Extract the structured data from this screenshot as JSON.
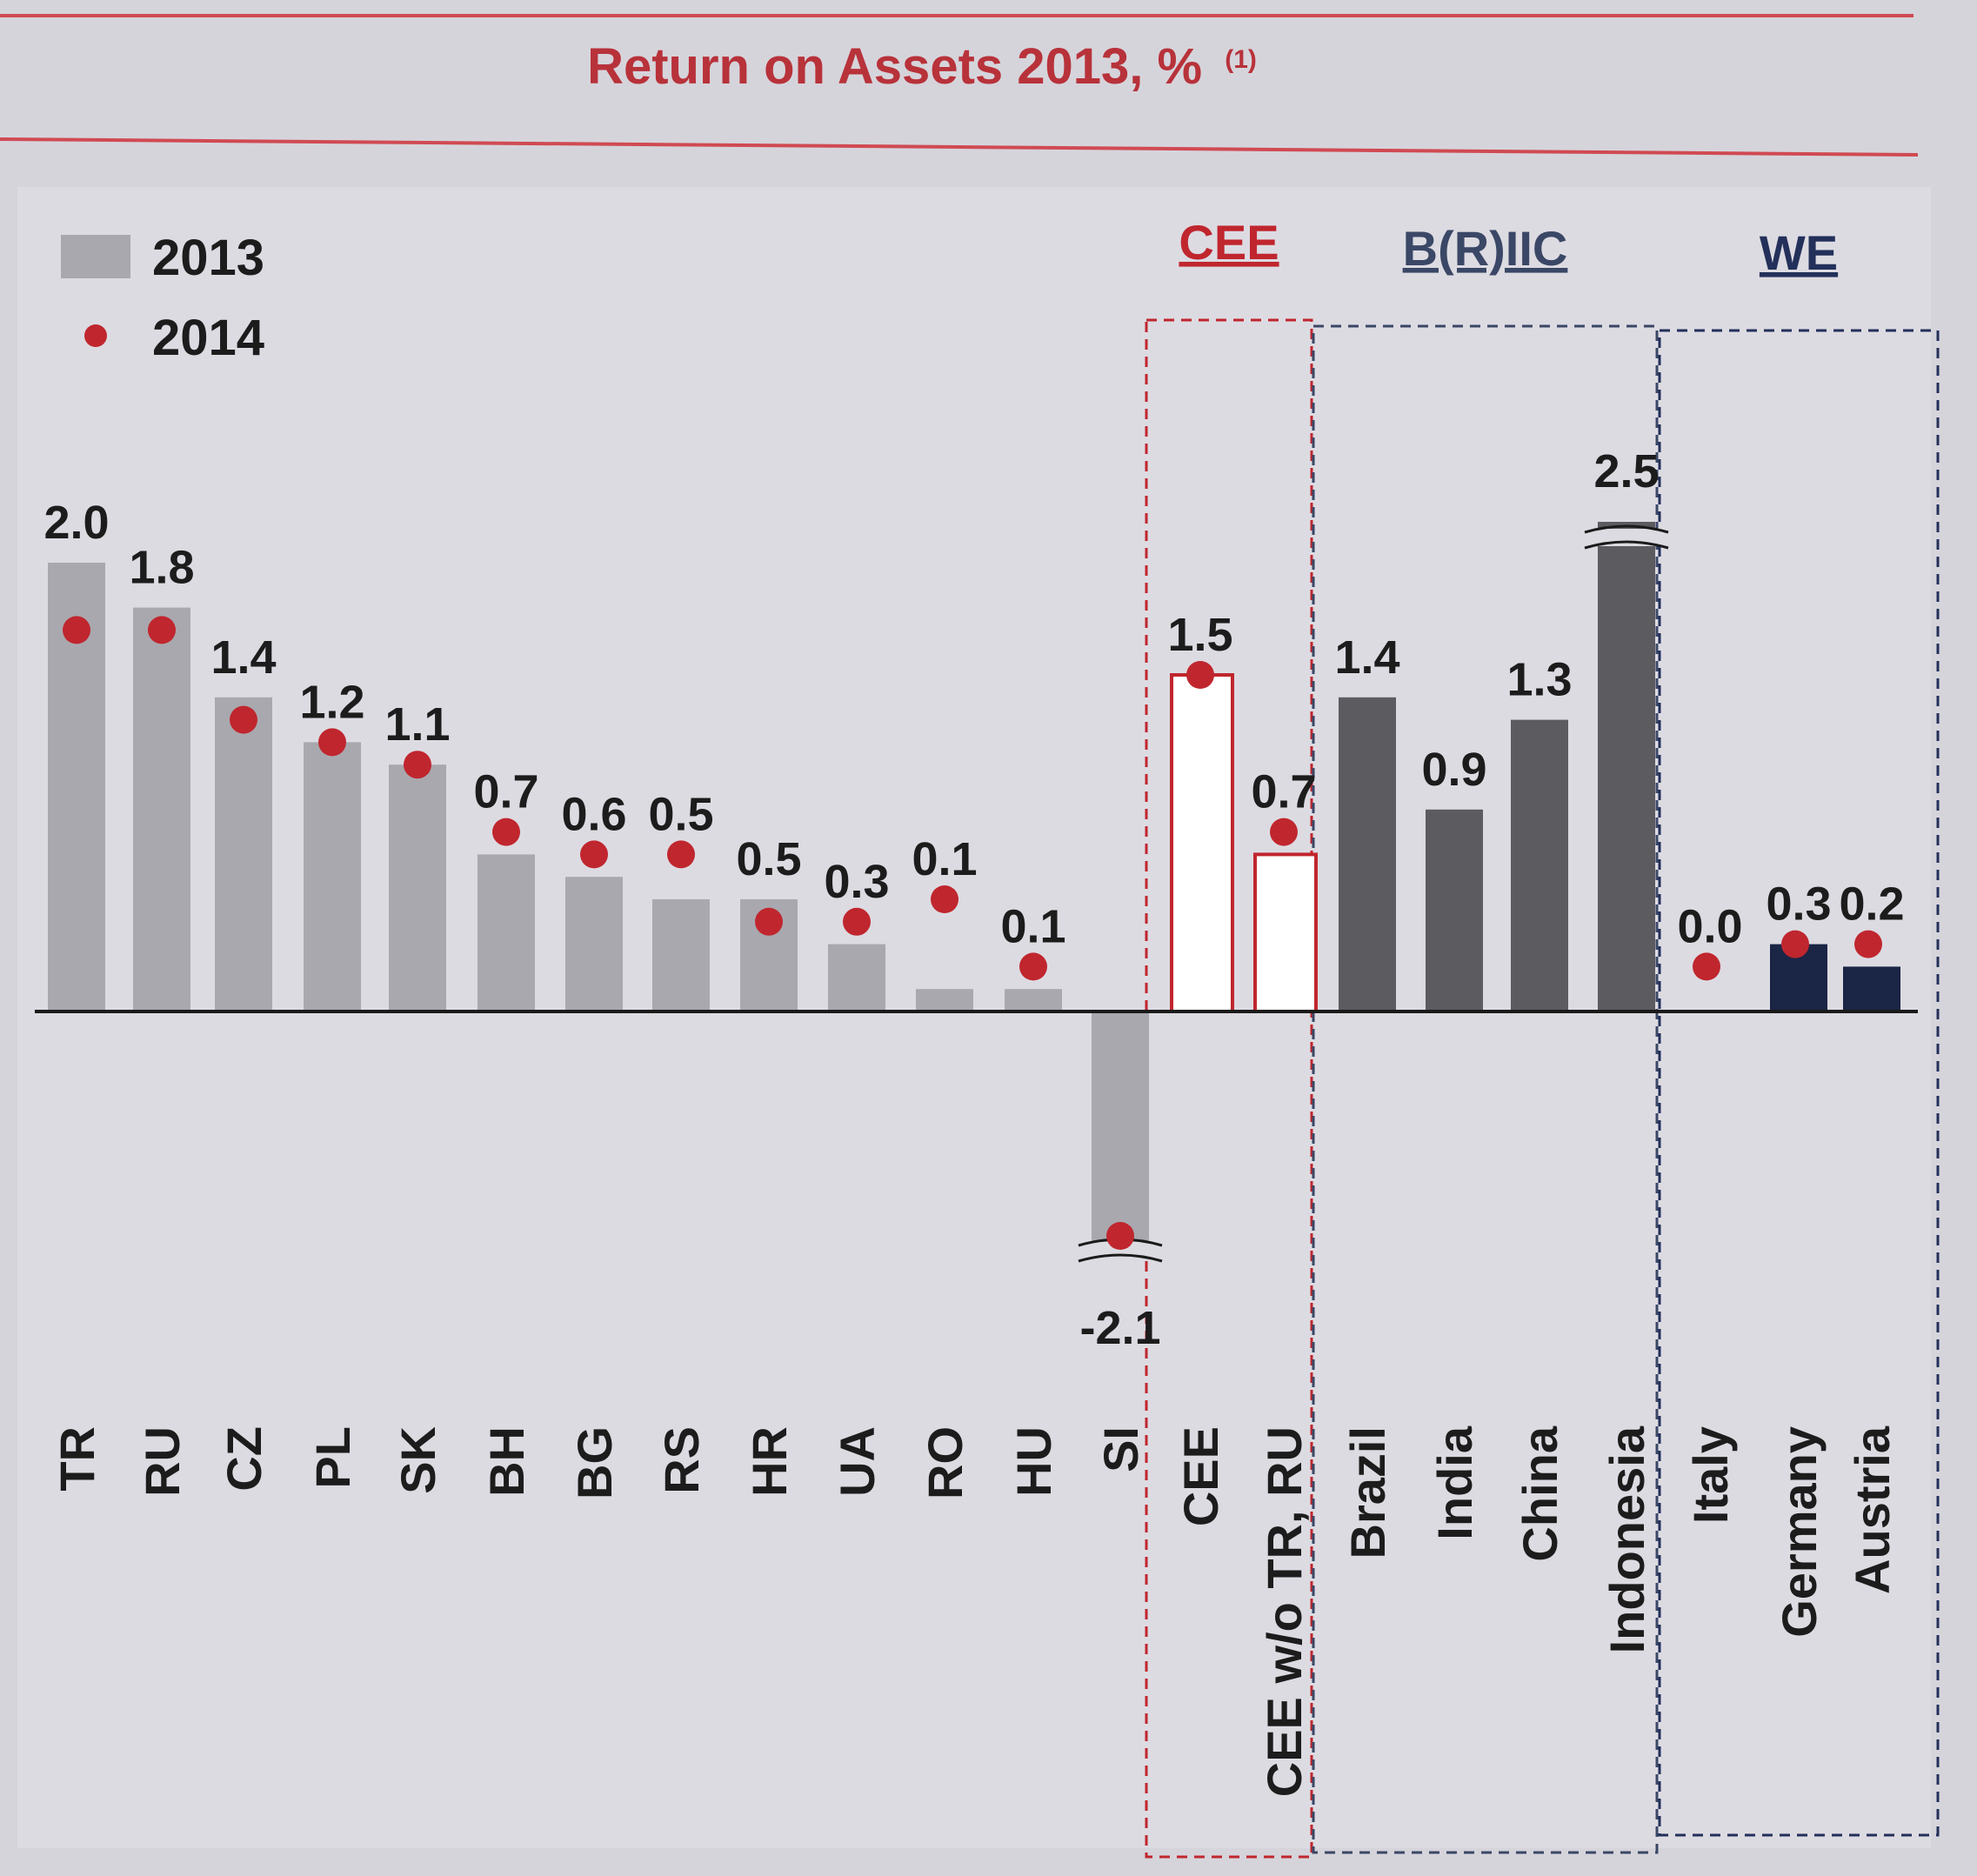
{
  "chart_data": {
    "type": "bar",
    "title": "Return on Assets 2013, %",
    "title_footnote": "(1)",
    "legend": [
      {
        "label": "2013",
        "marker": "bar",
        "color": "#a9a8ae"
      },
      {
        "label": "2014",
        "marker": "dot",
        "color": "#c0262e"
      }
    ],
    "legend_position": "top-left",
    "ylim": [
      -2.6,
      2.7
    ],
    "grid": false,
    "groups": [
      {
        "name": "CEE",
        "color": "#c0262e",
        "from": 13,
        "to": 14
      },
      {
        "name": "B(R)IIC",
        "color": "#3a4766",
        "from": 15,
        "to": 18
      },
      {
        "name": "WE",
        "color": "#23305a",
        "from": 19,
        "to": 21
      }
    ],
    "categories": [
      "TR",
      "RU",
      "CZ",
      "PL",
      "SK",
      "BH",
      "BG",
      "RS",
      "HR",
      "UA",
      "RO",
      "HU",
      "SI",
      "CEE",
      "CEE w/o TR, RU",
      "Brazil",
      "India",
      "China",
      "Indonesia",
      "Italy",
      "Germany",
      "Austria"
    ],
    "series": [
      {
        "name": "2013",
        "values": [
          2.0,
          1.8,
          1.4,
          1.2,
          1.1,
          0.7,
          0.6,
          0.5,
          0.5,
          0.3,
          0.1,
          0.1,
          -2.1,
          1.5,
          0.7,
          1.4,
          0.9,
          1.3,
          2.5,
          0.0,
          0.3,
          0.2
        ],
        "labels": [
          "2.0",
          "1.8",
          "1.4",
          "1.2",
          "1.1",
          "0.7",
          "0.6",
          "0.5",
          "0.5",
          "0.3",
          "0.1",
          "0.1",
          "-2.1",
          "1.5",
          "0.7",
          "1.4",
          "0.9",
          "1.3",
          "2.5",
          "0.0",
          "0.3",
          "0.2"
        ]
      },
      {
        "name": "2014",
        "values": [
          1.7,
          1.7,
          1.3,
          1.2,
          1.1,
          0.8,
          0.7,
          0.7,
          0.4,
          0.4,
          0.5,
          0.2,
          -1.0,
          1.5,
          0.8,
          null,
          null,
          null,
          null,
          0.2,
          0.3,
          0.3
        ]
      }
    ],
    "bar_colors": [
      "#a9a8ae",
      "#a9a8ae",
      "#a9a8ae",
      "#a9a8ae",
      "#a9a8ae",
      "#a9a8ae",
      "#a9a8ae",
      "#a9a8ae",
      "#a9a8ae",
      "#a9a8ae",
      "#a9a8ae",
      "#a9a8ae",
      "#a9a8ae",
      "#ffffff",
      "#ffffff",
      "#5b5b60",
      "#5b5b60",
      "#5b5b60",
      "#5b5b60",
      "#1b2545",
      "#1b2545",
      "#1b2545"
    ],
    "bar_outline": [
      null,
      null,
      null,
      null,
      null,
      null,
      null,
      null,
      null,
      null,
      null,
      null,
      null,
      "#c0262e",
      "#c0262e",
      null,
      null,
      null,
      null,
      null,
      null,
      null
    ],
    "axis_breaks": [
      "SI",
      "Indonesia"
    ]
  }
}
